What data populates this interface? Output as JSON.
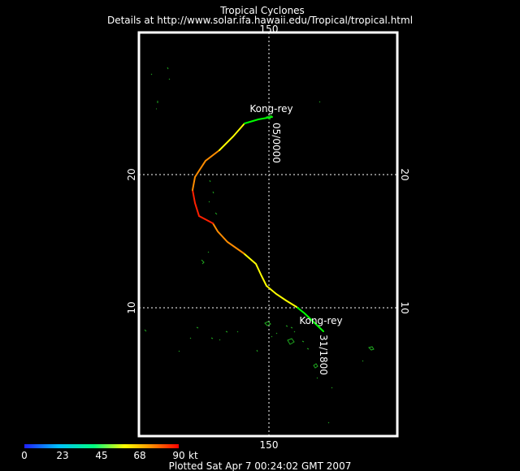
{
  "header": {
    "title": "Tropical Cyclones",
    "subtitle": "Details at http://www.solar.ifa.hawaii.edu/Tropical/tropical.html"
  },
  "footer": {
    "plotted": "Plotted Sat Apr 7 00:24:02 GMT 2007"
  },
  "grid": {
    "lon_top": "150",
    "lon_bottom": "150",
    "lat_20_left": "20",
    "lat_20_right": "20",
    "lat_10_left": "10",
    "lat_10_right": "10"
  },
  "storm": {
    "name_start": "Kong-rey",
    "name_end": "Kong-rey",
    "date_start": "31/1800",
    "date_end": "05/0000"
  },
  "legend": {
    "ticks": [
      "0",
      "23",
      "45",
      "68",
      "90"
    ],
    "unit": "kt",
    "colors": [
      "#0000ff",
      "#00b0ff",
      "#00ff60",
      "#ffff00",
      "#ff8000",
      "#ff0000"
    ]
  },
  "track_colors": {
    "weak": "#00ff00",
    "moderate": "#ffff00",
    "strong": "#ff8c00",
    "peak": "#ff2000"
  }
}
